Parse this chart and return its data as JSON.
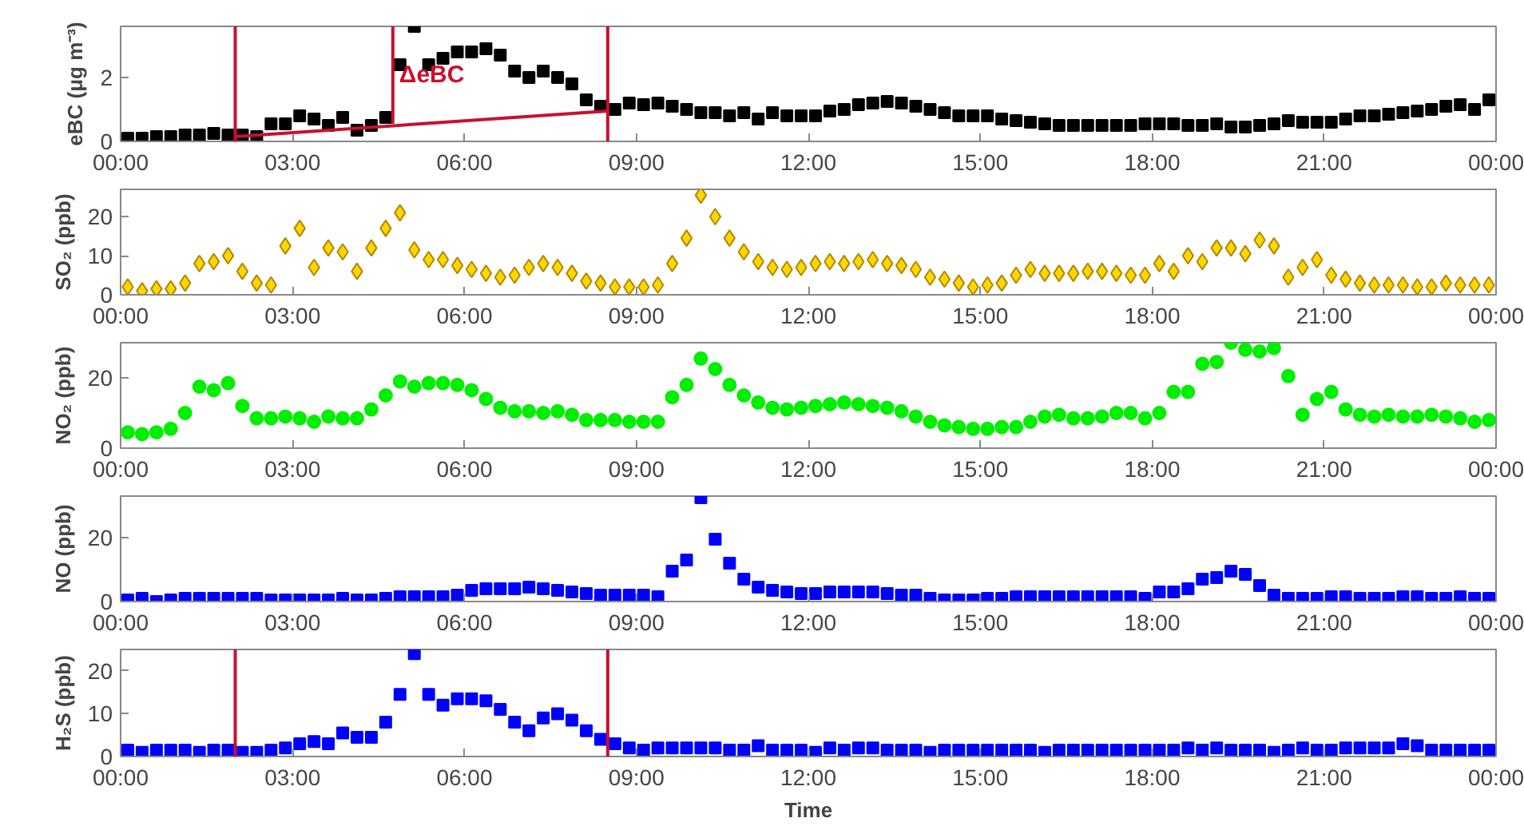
{
  "chart_data": [
    {
      "type": "scatter",
      "ylabel": "eBC (μg m⁻³)",
      "marker": "square",
      "xlim": [
        0,
        24
      ],
      "ylim": [
        0,
        3.6
      ],
      "yticks": [
        0,
        2
      ],
      "xticks": [
        {
          "value": 0,
          "label": "00:00"
        },
        {
          "value": 3,
          "label": "03:00"
        },
        {
          "value": 6,
          "label": "06:00"
        },
        {
          "value": 9,
          "label": "09:00"
        },
        {
          "value": 12,
          "label": "12:00"
        },
        {
          "value": 15,
          "label": "15:00"
        },
        {
          "value": 18,
          "label": "18:00"
        },
        {
          "value": 21,
          "label": "21:00"
        },
        {
          "value": 24,
          "label": "00:00"
        }
      ],
      "x": [
        0.125,
        0.375,
        0.625,
        0.875,
        1.125,
        1.375,
        1.625,
        1.875,
        2.125,
        2.375,
        2.625,
        2.875,
        3.125,
        3.375,
        3.625,
        3.875,
        4.125,
        4.375,
        4.625,
        4.875,
        5.125,
        5.375,
        5.625,
        5.875,
        6.125,
        6.375,
        6.625,
        6.875,
        7.125,
        7.375,
        7.625,
        7.875,
        8.125,
        8.375,
        8.625,
        8.875,
        9.125,
        9.375,
        9.625,
        9.875,
        10.125,
        10.375,
        10.625,
        10.875,
        11.125,
        11.375,
        11.625,
        11.875,
        12.125,
        12.375,
        12.625,
        12.875,
        13.125,
        13.375,
        13.625,
        13.875,
        14.125,
        14.375,
        14.625,
        14.875,
        15.125,
        15.375,
        15.625,
        15.875,
        16.125,
        16.375,
        16.625,
        16.875,
        17.125,
        17.375,
        17.625,
        17.875,
        18.125,
        18.375,
        18.625,
        18.875,
        19.125,
        19.375,
        19.625,
        19.875,
        20.125,
        20.375,
        20.625,
        20.875,
        21.125,
        21.375,
        21.625,
        21.875,
        22.125,
        22.375,
        22.625,
        22.875,
        23.125,
        23.375,
        23.625,
        23.875
      ],
      "series": [
        {
          "color": "#000000",
          "values": [
            0.1,
            0.1,
            0.15,
            0.15,
            0.2,
            0.2,
            0.25,
            0.2,
            0.2,
            0.15,
            0.55,
            0.55,
            0.8,
            0.7,
            0.5,
            0.75,
            0.35,
            0.5,
            0.75,
            2.4,
            3.6,
            2.4,
            2.6,
            2.8,
            2.8,
            2.9,
            2.7,
            2.2,
            2.0,
            2.2,
            2.0,
            1.8,
            1.3,
            1.1,
            1.0,
            1.2,
            1.15,
            1.2,
            1.1,
            1.0,
            0.9,
            0.9,
            0.8,
            0.9,
            0.7,
            0.9,
            0.8,
            0.8,
            0.8,
            0.95,
            1.0,
            1.15,
            1.2,
            1.25,
            1.2,
            1.1,
            1.0,
            0.9,
            0.8,
            0.8,
            0.8,
            0.7,
            0.65,
            0.6,
            0.55,
            0.5,
            0.5,
            0.5,
            0.5,
            0.5,
            0.5,
            0.55,
            0.55,
            0.55,
            0.5,
            0.5,
            0.55,
            0.45,
            0.45,
            0.5,
            0.55,
            0.65,
            0.6,
            0.6,
            0.6,
            0.7,
            0.8,
            0.8,
            0.85,
            0.9,
            0.95,
            1.0,
            1.1,
            1.15,
            1.0,
            1.3
          ]
        },
        {
          "type": "line",
          "marker": "none",
          "color": "#c8102e",
          "x": [
            2,
            8.5
          ],
          "values": [
            0.15,
            0.95
          ]
        },
        {
          "type": "line",
          "marker": "none",
          "color": "#c8102e",
          "x": [
            4.75,
            4.75
          ],
          "values": [
            0.55,
            3.6
          ]
        }
      ],
      "ref_lines": [
        {
          "axis": "x",
          "value": 2,
          "color": "#c8102e"
        },
        {
          "axis": "x",
          "value": 8.5,
          "color": "#c8102e"
        }
      ],
      "annotations": [
        "ΔeBC"
      ]
    },
    {
      "type": "scatter",
      "ylabel": "SO₂ (ppb)",
      "marker": "diamond",
      "xlim": [
        0,
        24
      ],
      "ylim": [
        0,
        27
      ],
      "yticks": [
        0,
        10,
        20
      ],
      "xticks": [
        {
          "value": 0,
          "label": "00:00"
        },
        {
          "value": 3,
          "label": "03:00"
        },
        {
          "value": 6,
          "label": "06:00"
        },
        {
          "value": 9,
          "label": "09:00"
        },
        {
          "value": 12,
          "label": "12:00"
        },
        {
          "value": 15,
          "label": "15:00"
        },
        {
          "value": 18,
          "label": "18:00"
        },
        {
          "value": 21,
          "label": "21:00"
        },
        {
          "value": 24,
          "label": "00:00"
        }
      ],
      "x": [
        0.125,
        0.375,
        0.625,
        0.875,
        1.125,
        1.375,
        1.625,
        1.875,
        2.125,
        2.375,
        2.625,
        2.875,
        3.125,
        3.375,
        3.625,
        3.875,
        4.125,
        4.375,
        4.625,
        4.875,
        5.125,
        5.375,
        5.625,
        5.875,
        6.125,
        6.375,
        6.625,
        6.875,
        7.125,
        7.375,
        7.625,
        7.875,
        8.125,
        8.375,
        8.625,
        8.875,
        9.125,
        9.375,
        9.625,
        9.875,
        10.125,
        10.375,
        10.625,
        10.875,
        11.125,
        11.375,
        11.625,
        11.875,
        12.125,
        12.375,
        12.625,
        12.875,
        13.125,
        13.375,
        13.625,
        13.875,
        14.125,
        14.375,
        14.625,
        14.875,
        15.125,
        15.375,
        15.625,
        15.875,
        16.125,
        16.375,
        16.625,
        16.875,
        17.125,
        17.375,
        17.625,
        17.875,
        18.125,
        18.375,
        18.625,
        18.875,
        19.125,
        19.375,
        19.625,
        19.875,
        20.125,
        20.375,
        20.625,
        20.875,
        21.125,
        21.375,
        21.625,
        21.875,
        22.125,
        22.375,
        22.625,
        22.875,
        23.125,
        23.375,
        23.625,
        23.875
      ],
      "series": [
        {
          "color": "#ffd700",
          "values": [
            2,
            1,
            1.5,
            1.5,
            3,
            8,
            8.5,
            10,
            6,
            3,
            2.5,
            12.5,
            17,
            7,
            12,
            11,
            6,
            12,
            17,
            21,
            11.5,
            9,
            9,
            7.5,
            6.5,
            5.5,
            4.5,
            5,
            7,
            8,
            7,
            5.5,
            3.5,
            3,
            2,
            2,
            2,
            2.5,
            8,
            14.5,
            25.5,
            20,
            14.5,
            11,
            8.5,
            7,
            6.5,
            7,
            8,
            8.5,
            8,
            8.5,
            9,
            8,
            7.5,
            6.5,
            4.5,
            4,
            3,
            2,
            2.5,
            3,
            5,
            6.5,
            5.5,
            5.5,
            5.5,
            6,
            6,
            5.5,
            5,
            5,
            8,
            6,
            10,
            8.5,
            12,
            12,
            10.5,
            14,
            12.5,
            4.5,
            7,
            9,
            5,
            4,
            3,
            2.5,
            2.5,
            2.5,
            2,
            2,
            3,
            2.5,
            2.5,
            2.5
          ]
        }
      ]
    },
    {
      "type": "scatter",
      "ylabel": "NO₂ (ppb)",
      "marker": "circle",
      "xlim": [
        0,
        24
      ],
      "ylim": [
        0,
        30
      ],
      "yticks": [
        0,
        20
      ],
      "xticks": [
        {
          "value": 0,
          "label": "00:00"
        },
        {
          "value": 3,
          "label": "03:00"
        },
        {
          "value": 6,
          "label": "06:00"
        },
        {
          "value": 9,
          "label": "09:00"
        },
        {
          "value": 12,
          "label": "12:00"
        },
        {
          "value": 15,
          "label": "15:00"
        },
        {
          "value": 18,
          "label": "18:00"
        },
        {
          "value": 21,
          "label": "21:00"
        },
        {
          "value": 24,
          "label": "00:00"
        }
      ],
      "x": [
        0.125,
        0.375,
        0.625,
        0.875,
        1.125,
        1.375,
        1.625,
        1.875,
        2.125,
        2.375,
        2.625,
        2.875,
        3.125,
        3.375,
        3.625,
        3.875,
        4.125,
        4.375,
        4.625,
        4.875,
        5.125,
        5.375,
        5.625,
        5.875,
        6.125,
        6.375,
        6.625,
        6.875,
        7.125,
        7.375,
        7.625,
        7.875,
        8.125,
        8.375,
        8.625,
        8.875,
        9.125,
        9.375,
        9.625,
        9.875,
        10.125,
        10.375,
        10.625,
        10.875,
        11.125,
        11.375,
        11.625,
        11.875,
        12.125,
        12.375,
        12.625,
        12.875,
        13.125,
        13.375,
        13.625,
        13.875,
        14.125,
        14.375,
        14.625,
        14.875,
        15.125,
        15.375,
        15.625,
        15.875,
        16.125,
        16.375,
        16.625,
        16.875,
        17.125,
        17.375,
        17.625,
        17.875,
        18.125,
        18.375,
        18.625,
        18.875,
        19.125,
        19.375,
        19.625,
        19.875,
        20.125,
        20.375,
        20.625,
        20.875,
        21.125,
        21.375,
        21.625,
        21.875,
        22.125,
        22.375,
        22.625,
        22.875,
        23.125,
        23.375,
        23.625,
        23.875
      ],
      "series": [
        {
          "color": "#00ee00",
          "values": [
            4.5,
            4,
            4.5,
            5.5,
            10,
            17.5,
            16.5,
            18.5,
            12,
            8.5,
            8.5,
            9,
            8.5,
            7.5,
            9,
            8.5,
            8.5,
            11,
            15,
            19,
            17.5,
            18.5,
            18.5,
            18,
            16.5,
            14,
            11.5,
            10.5,
            10.5,
            10,
            10.5,
            9.5,
            8,
            8,
            8,
            7.5,
            7.5,
            7.5,
            14.5,
            18,
            25.5,
            22.5,
            18,
            15,
            13,
            11.5,
            11,
            11.5,
            12,
            12.5,
            13,
            12.5,
            12,
            11.5,
            10.5,
            9,
            7.5,
            6.5,
            6,
            5.5,
            5.5,
            6,
            6,
            7.5,
            9,
            9.5,
            8.5,
            8.5,
            9,
            10,
            10,
            8.5,
            10,
            16,
            16,
            24,
            24.5,
            30,
            28,
            27.5,
            28.5,
            20.5,
            9.5,
            14,
            16,
            11,
            9.5,
            9,
            9.5,
            9,
            9,
            9.5,
            9,
            8.5,
            7.5,
            8
          ]
        }
      ]
    },
    {
      "type": "scatter",
      "ylabel": "NO (ppb)",
      "marker": "square",
      "xlim": [
        0,
        24
      ],
      "ylim": [
        0,
        33
      ],
      "yticks": [
        0,
        20
      ],
      "xticks": [
        {
          "value": 0,
          "label": "00:00"
        },
        {
          "value": 3,
          "label": "03:00"
        },
        {
          "value": 6,
          "label": "06:00"
        },
        {
          "value": 9,
          "label": "09:00"
        },
        {
          "value": 12,
          "label": "12:00"
        },
        {
          "value": 15,
          "label": "15:00"
        },
        {
          "value": 18,
          "label": "18:00"
        },
        {
          "value": 21,
          "label": "21:00"
        },
        {
          "value": 24,
          "label": "00:00"
        }
      ],
      "x": [
        0.125,
        0.375,
        0.625,
        0.875,
        1.125,
        1.375,
        1.625,
        1.875,
        2.125,
        2.375,
        2.625,
        2.875,
        3.125,
        3.375,
        3.625,
        3.875,
        4.125,
        4.375,
        4.625,
        4.875,
        5.125,
        5.375,
        5.625,
        5.875,
        6.125,
        6.375,
        6.625,
        6.875,
        7.125,
        7.375,
        7.625,
        7.875,
        8.125,
        8.375,
        8.625,
        8.875,
        9.125,
        9.375,
        9.625,
        9.875,
        10.125,
        10.375,
        10.625,
        10.875,
        11.125,
        11.375,
        11.625,
        11.875,
        12.125,
        12.375,
        12.625,
        12.875,
        13.125,
        13.375,
        13.625,
        13.875,
        14.125,
        14.375,
        14.625,
        14.875,
        15.125,
        15.375,
        15.625,
        15.875,
        16.125,
        16.375,
        16.625,
        16.875,
        17.125,
        17.375,
        17.625,
        17.875,
        18.125,
        18.375,
        18.625,
        18.875,
        19.125,
        19.375,
        19.625,
        19.875,
        20.125,
        20.375,
        20.625,
        20.875,
        21.125,
        21.375,
        21.625,
        21.875,
        22.125,
        22.375,
        22.625,
        22.875,
        23.125,
        23.375,
        23.625,
        23.875
      ],
      "series": [
        {
          "color": "#0000ff",
          "values": [
            0.5,
            1,
            0,
            0.5,
            1,
            1,
            1,
            1,
            1,
            1,
            0.5,
            0.5,
            0.5,
            0.5,
            0.5,
            1,
            0.5,
            0.5,
            1,
            1.5,
            1.5,
            1.5,
            1.5,
            2,
            3.5,
            4,
            4,
            4,
            4.5,
            4,
            3.5,
            3,
            2.5,
            2,
            2,
            2,
            2,
            1.5,
            9.5,
            13,
            32.5,
            19.5,
            12,
            7,
            4.5,
            3.5,
            3,
            2.5,
            2.5,
            3,
            3,
            3,
            3,
            2.5,
            2,
            2,
            1,
            0.5,
            0.5,
            0.5,
            1,
            1,
            1.5,
            1.5,
            1.5,
            1.5,
            1.5,
            1.5,
            1.5,
            1.5,
            1.5,
            1,
            3,
            3,
            4,
            7,
            7.5,
            9.5,
            8.5,
            5,
            2,
            1,
            1,
            1,
            1.5,
            1.5,
            1,
            1,
            1,
            1.5,
            1.5,
            1,
            1,
            1.5,
            1,
            1
          ]
        }
      ]
    },
    {
      "type": "scatter",
      "ylabel": "H₂S (ppb)",
      "xlabel": "Time",
      "marker": "square",
      "xlim": [
        0,
        24
      ],
      "ylim": [
        0,
        25
      ],
      "yticks": [
        0,
        10,
        20
      ],
      "xticks": [
        {
          "value": 0,
          "label": "00:00"
        },
        {
          "value": 3,
          "label": "03:00"
        },
        {
          "value": 6,
          "label": "06:00"
        },
        {
          "value": 9,
          "label": "09:00"
        },
        {
          "value": 12,
          "label": "12:00"
        },
        {
          "value": 15,
          "label": "15:00"
        },
        {
          "value": 18,
          "label": "18:00"
        },
        {
          "value": 21,
          "label": "21:00"
        },
        {
          "value": 24,
          "label": "00:00"
        }
      ],
      "x": [
        0.125,
        0.375,
        0.625,
        0.875,
        1.125,
        1.375,
        1.625,
        1.875,
        2.125,
        2.375,
        2.625,
        2.875,
        3.125,
        3.375,
        3.625,
        3.875,
        4.125,
        4.375,
        4.625,
        4.875,
        5.125,
        5.375,
        5.625,
        5.875,
        6.125,
        6.375,
        6.625,
        6.875,
        7.125,
        7.375,
        7.625,
        7.875,
        8.125,
        8.375,
        8.625,
        8.875,
        9.125,
        9.375,
        9.625,
        9.875,
        10.125,
        10.375,
        10.625,
        10.875,
        11.125,
        11.375,
        11.625,
        11.875,
        12.125,
        12.375,
        12.625,
        12.875,
        13.125,
        13.375,
        13.625,
        13.875,
        14.125,
        14.375,
        14.625,
        14.875,
        15.125,
        15.375,
        15.625,
        15.875,
        16.125,
        16.375,
        16.625,
        16.875,
        17.125,
        17.375,
        17.625,
        17.875,
        18.125,
        18.375,
        18.625,
        18.875,
        19.125,
        19.375,
        19.625,
        19.875,
        20.125,
        20.375,
        20.625,
        20.875,
        21.125,
        21.375,
        21.625,
        21.875,
        22.125,
        22.375,
        22.625,
        22.875,
        23.125,
        23.375,
        23.625,
        23.875
      ],
      "series": [
        {
          "color": "#0000ff",
          "values": [
            1.5,
            1,
            1.5,
            1.5,
            1.5,
            1,
            1.5,
            1.5,
            1,
            1,
            1.5,
            2,
            3,
            3.5,
            3,
            5.5,
            4.5,
            4.5,
            8,
            14.5,
            24,
            14.5,
            12,
            13.5,
            13.5,
            13,
            11,
            8,
            6,
            9,
            10,
            8.5,
            6,
            4,
            3,
            2,
            1.5,
            2,
            2,
            2,
            2,
            2,
            1.5,
            1.5,
            2.5,
            1.5,
            1.5,
            1.5,
            1,
            2,
            1.5,
            2,
            2,
            1.5,
            1.5,
            1.5,
            1,
            1.5,
            1.5,
            1.5,
            1.5,
            1.5,
            1.5,
            1.5,
            1,
            1.5,
            1.5,
            1.5,
            1.5,
            1.5,
            1.5,
            1.5,
            1.5,
            1.5,
            2,
            1.5,
            2,
            1.5,
            1.5,
            1.5,
            1,
            1.5,
            2,
            1.5,
            1.5,
            2,
            2,
            2,
            2,
            3,
            2.5,
            1.5,
            1.5,
            1.5,
            1.5,
            1.5
          ]
        }
      ],
      "ref_lines": [
        {
          "axis": "x",
          "value": 2,
          "color": "#c8102e"
        },
        {
          "axis": "x",
          "value": 8.5,
          "color": "#c8102e"
        }
      ]
    }
  ]
}
